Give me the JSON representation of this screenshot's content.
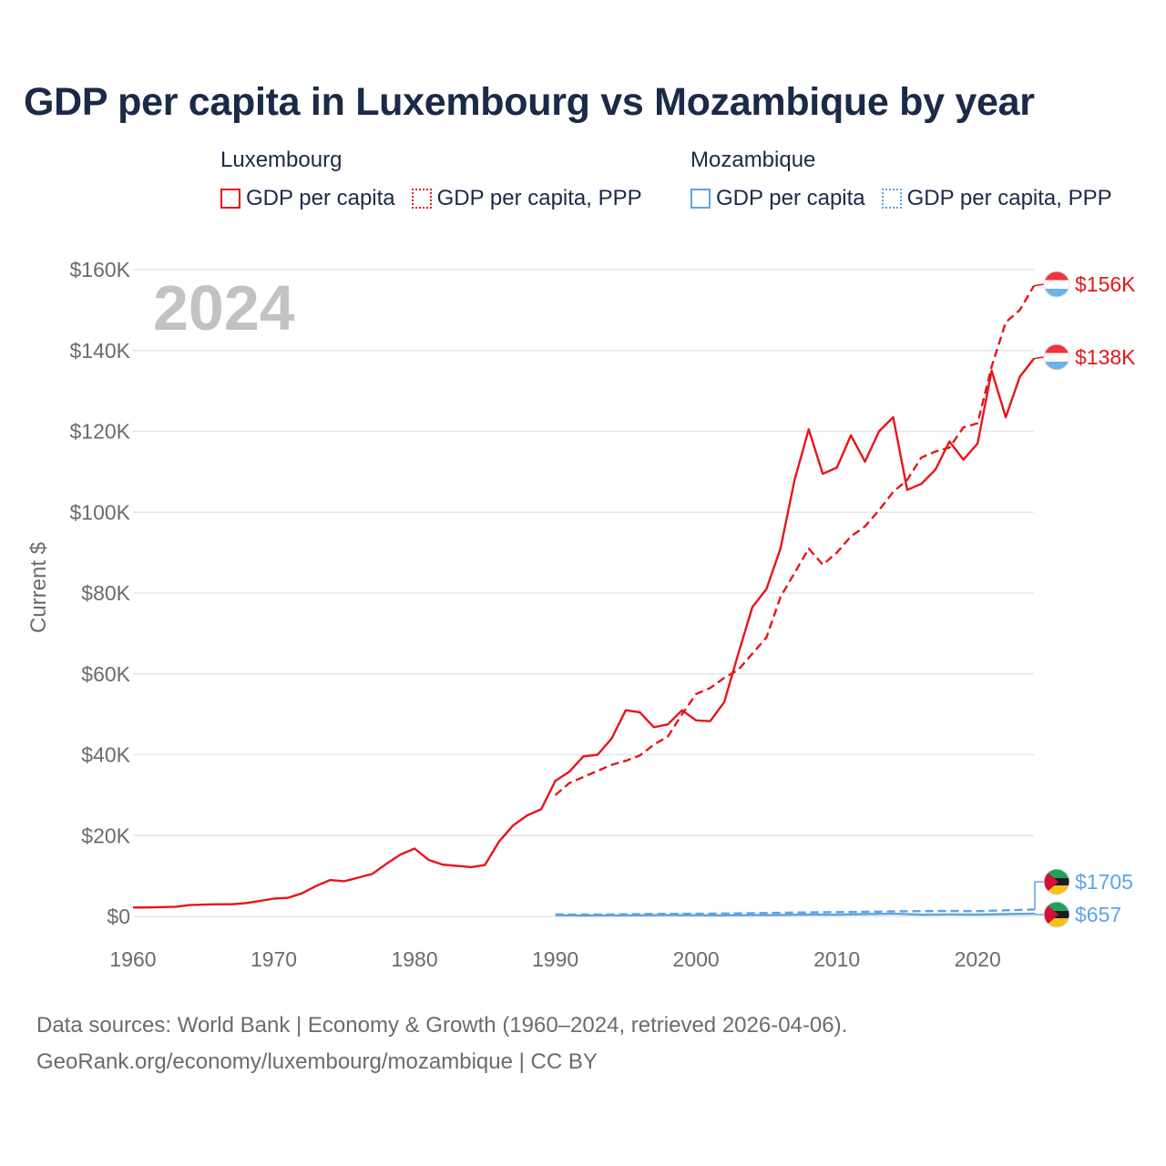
{
  "title": "GDP per capita in Luxembourg vs Mozambique by year",
  "legend": [
    {
      "country": "Luxembourg",
      "items": [
        {
          "label": "GDP per capita",
          "style": "solid",
          "color": "#e8141b"
        },
        {
          "label": "GDP per capita, PPP",
          "style": "dotted",
          "color": "#e8141b"
        }
      ]
    },
    {
      "country": "Mozambique",
      "items": [
        {
          "label": "GDP per capita",
          "style": "solid",
          "color": "#5ea3e6"
        },
        {
          "label": "GDP per capita, PPP",
          "style": "dotted",
          "color": "#5ea3e6"
        }
      ]
    }
  ],
  "sources": {
    "line1": "Data sources: World Bank | Economy & Growth (1960–2024, retrieved 2026-04-06).",
    "line2": "GeoRank.org/economy/luxembourg/mozambique | CC BY"
  },
  "colors": {
    "luxembourg": "#e8141b",
    "mozambique": "#5ea3e6",
    "grid": "#e6e6e6",
    "axis_text": "#6b6b6b",
    "year_watermark": "#c2c2c4"
  },
  "chart_data": {
    "type": "line",
    "year_label": "2024",
    "ylabel": "Current $",
    "xlim": [
      1960,
      2024
    ],
    "ylim": [
      0,
      160000
    ],
    "xticks": [
      1960,
      1970,
      1980,
      1990,
      2000,
      2010,
      2020
    ],
    "xtick_labels": [
      "1960",
      "1970",
      "1980",
      "1990",
      "2000",
      "2010",
      "2020"
    ],
    "yticks": [
      0,
      20000,
      40000,
      60000,
      80000,
      100000,
      120000,
      140000,
      160000
    ],
    "ytick_labels": [
      "$0",
      "$20K",
      "$40K",
      "$60K",
      "$80K",
      "$100K",
      "$120K",
      "$140K",
      "$160K"
    ],
    "series": [
      {
        "name": "Luxembourg GDP per capita",
        "country": "luxembourg",
        "dash": "solid",
        "end_label": "$138K",
        "x": [
          1960,
          1961,
          1962,
          1963,
          1964,
          1965,
          1966,
          1967,
          1968,
          1969,
          1970,
          1971,
          1972,
          1973,
          1974,
          1975,
          1976,
          1977,
          1978,
          1979,
          1980,
          1981,
          1982,
          1983,
          1984,
          1985,
          1986,
          1987,
          1988,
          1989,
          1990,
          1991,
          1992,
          1993,
          1994,
          1995,
          1996,
          1997,
          1998,
          1999,
          2000,
          2001,
          2002,
          2003,
          2004,
          2005,
          2006,
          2007,
          2008,
          2009,
          2010,
          2011,
          2012,
          2013,
          2014,
          2015,
          2016,
          2017,
          2018,
          2019,
          2020,
          2021,
          2022,
          2023,
          2024
        ],
        "values": [
          2200,
          2200,
          2300,
          2400,
          2800,
          2900,
          3000,
          3000,
          3300,
          3800,
          4400,
          4600,
          5700,
          7500,
          9000,
          8700,
          9600,
          10500,
          13000,
          15300,
          16800,
          14000,
          12800,
          12500,
          12200,
          12700,
          18500,
          22500,
          25000,
          26500,
          33500,
          35800,
          39600,
          40000,
          44000,
          51000,
          50500,
          46800,
          47500,
          51000,
          48500,
          48300,
          53000,
          65000,
          76500,
          81000,
          91000,
          108000,
          120500,
          109500,
          111000,
          119000,
          112500,
          120000,
          123500,
          105500,
          107000,
          110500,
          117500,
          113000,
          117000,
          135000,
          123500,
          133500,
          138000
        ]
      },
      {
        "name": "Luxembourg GDP per capita, PPP",
        "country": "luxembourg",
        "dash": "dashed",
        "end_label": "$156K",
        "x": [
          1990,
          1991,
          1992,
          1993,
          1994,
          1995,
          1996,
          1997,
          1998,
          1999,
          2000,
          2001,
          2002,
          2003,
          2004,
          2005,
          2006,
          2007,
          2008,
          2009,
          2010,
          2011,
          2012,
          2013,
          2014,
          2015,
          2016,
          2017,
          2018,
          2019,
          2020,
          2021,
          2022,
          2023,
          2024
        ],
        "values": [
          30000,
          33000,
          34500,
          36000,
          37500,
          38500,
          39800,
          42500,
          44500,
          50000,
          55000,
          56500,
          59000,
          61000,
          65000,
          69000,
          79000,
          85000,
          91000,
          87000,
          90000,
          94000,
          96500,
          100500,
          105000,
          108000,
          113500,
          115000,
          116000,
          121000,
          122000,
          136000,
          147000,
          150000,
          156000
        ]
      },
      {
        "name": "Mozambique GDP per capita",
        "country": "mozambique",
        "dash": "solid",
        "end_label": "$657",
        "x": [
          1990,
          1992,
          1994,
          1996,
          1998,
          2000,
          2002,
          2004,
          2006,
          2008,
          2010,
          2012,
          2014,
          2016,
          2018,
          2020,
          2022,
          2024
        ],
        "values": [
          300,
          200,
          250,
          280,
          320,
          300,
          280,
          320,
          360,
          450,
          430,
          560,
          650,
          420,
          500,
          460,
          560,
          657
        ]
      },
      {
        "name": "Mozambique GDP per capita, PPP",
        "country": "mozambique",
        "dash": "dashed",
        "end_label": "$1705",
        "x": [
          1990,
          1992,
          1994,
          1996,
          1998,
          2000,
          2002,
          2004,
          2006,
          2008,
          2010,
          2012,
          2014,
          2016,
          2018,
          2020,
          2022,
          2024
        ],
        "values": [
          500,
          450,
          500,
          580,
          620,
          650,
          720,
          800,
          900,
          1000,
          1050,
          1150,
          1250,
          1300,
          1350,
          1300,
          1500,
          1705
        ]
      }
    ]
  }
}
